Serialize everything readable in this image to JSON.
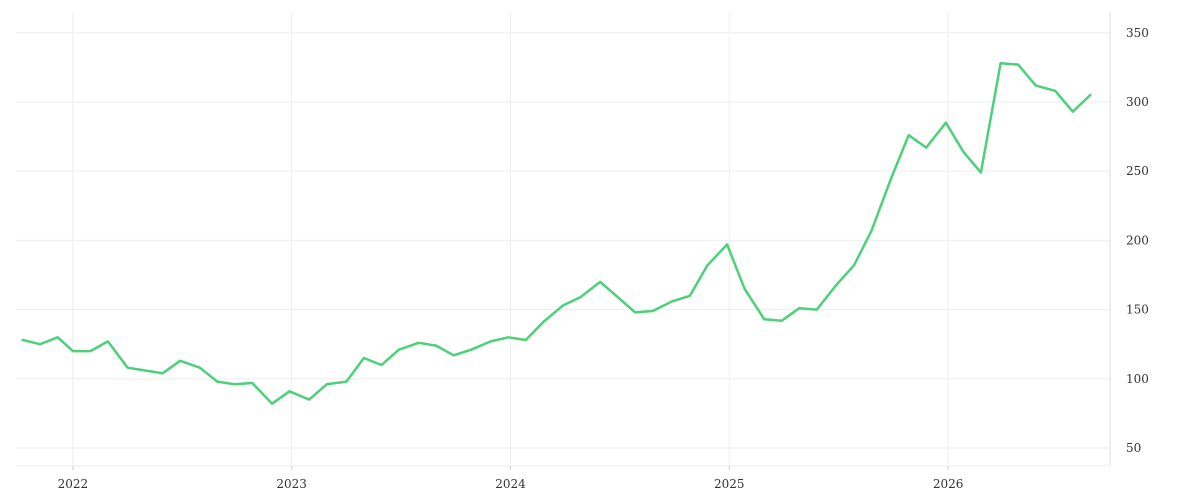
{
  "chart_data": {
    "type": "line",
    "title": "",
    "xlabel": "",
    "ylabel": "",
    "x_ticks": [
      {
        "label": "2022",
        "value": 2022.0
      },
      {
        "label": "2023",
        "value": 2023.0
      },
      {
        "label": "2024",
        "value": 2024.0
      },
      {
        "label": "2025",
        "value": 2025.0
      },
      {
        "label": "2026",
        "value": 2026.0
      }
    ],
    "y_ticks": [
      50,
      100,
      150,
      200,
      250,
      300,
      350
    ],
    "xlim": [
      2021.74,
      2026.74
    ],
    "ylim": [
      37,
      365
    ],
    "grid": true,
    "y_axis_side": "right",
    "legend": "none",
    "series": [
      {
        "color": "#4cd17a",
        "points": [
          [
            2021.77,
            128
          ],
          [
            2021.85,
            125
          ],
          [
            2021.93,
            130
          ],
          [
            2022.0,
            120
          ],
          [
            2022.08,
            120
          ],
          [
            2022.16,
            127
          ],
          [
            2022.25,
            108
          ],
          [
            2022.33,
            106
          ],
          [
            2022.41,
            104
          ],
          [
            2022.49,
            113
          ],
          [
            2022.58,
            108
          ],
          [
            2022.66,
            98
          ],
          [
            2022.74,
            96
          ],
          [
            2022.82,
            97
          ],
          [
            2022.91,
            82
          ],
          [
            2022.99,
            91
          ],
          [
            2023.08,
            85
          ],
          [
            2023.16,
            96
          ],
          [
            2023.25,
            98
          ],
          [
            2023.33,
            115
          ],
          [
            2023.41,
            110
          ],
          [
            2023.49,
            121
          ],
          [
            2023.58,
            126
          ],
          [
            2023.66,
            124
          ],
          [
            2023.74,
            117
          ],
          [
            2023.82,
            121
          ],
          [
            2023.91,
            127
          ],
          [
            2023.99,
            130
          ],
          [
            2024.07,
            128
          ],
          [
            2024.15,
            141
          ],
          [
            2024.24,
            153
          ],
          [
            2024.32,
            159
          ],
          [
            2024.41,
            170
          ],
          [
            2024.49,
            159
          ],
          [
            2024.57,
            148
          ],
          [
            2024.65,
            149
          ],
          [
            2024.74,
            156
          ],
          [
            2024.82,
            160
          ],
          [
            2024.9,
            182
          ],
          [
            2024.99,
            197
          ],
          [
            2025.07,
            165
          ],
          [
            2025.16,
            143
          ],
          [
            2025.24,
            142
          ],
          [
            2025.32,
            151
          ],
          [
            2025.4,
            150
          ],
          [
            2025.49,
            168
          ],
          [
            2025.57,
            182
          ],
          [
            2025.65,
            207
          ],
          [
            2025.74,
            245
          ],
          [
            2025.82,
            276
          ],
          [
            2025.9,
            267
          ],
          [
            2025.99,
            285
          ],
          [
            2026.07,
            264
          ],
          [
            2026.15,
            249
          ],
          [
            2026.24,
            328
          ],
          [
            2026.32,
            327
          ],
          [
            2026.4,
            312
          ],
          [
            2026.49,
            308
          ],
          [
            2026.57,
            293
          ],
          [
            2026.65,
            305
          ]
        ]
      }
    ]
  }
}
